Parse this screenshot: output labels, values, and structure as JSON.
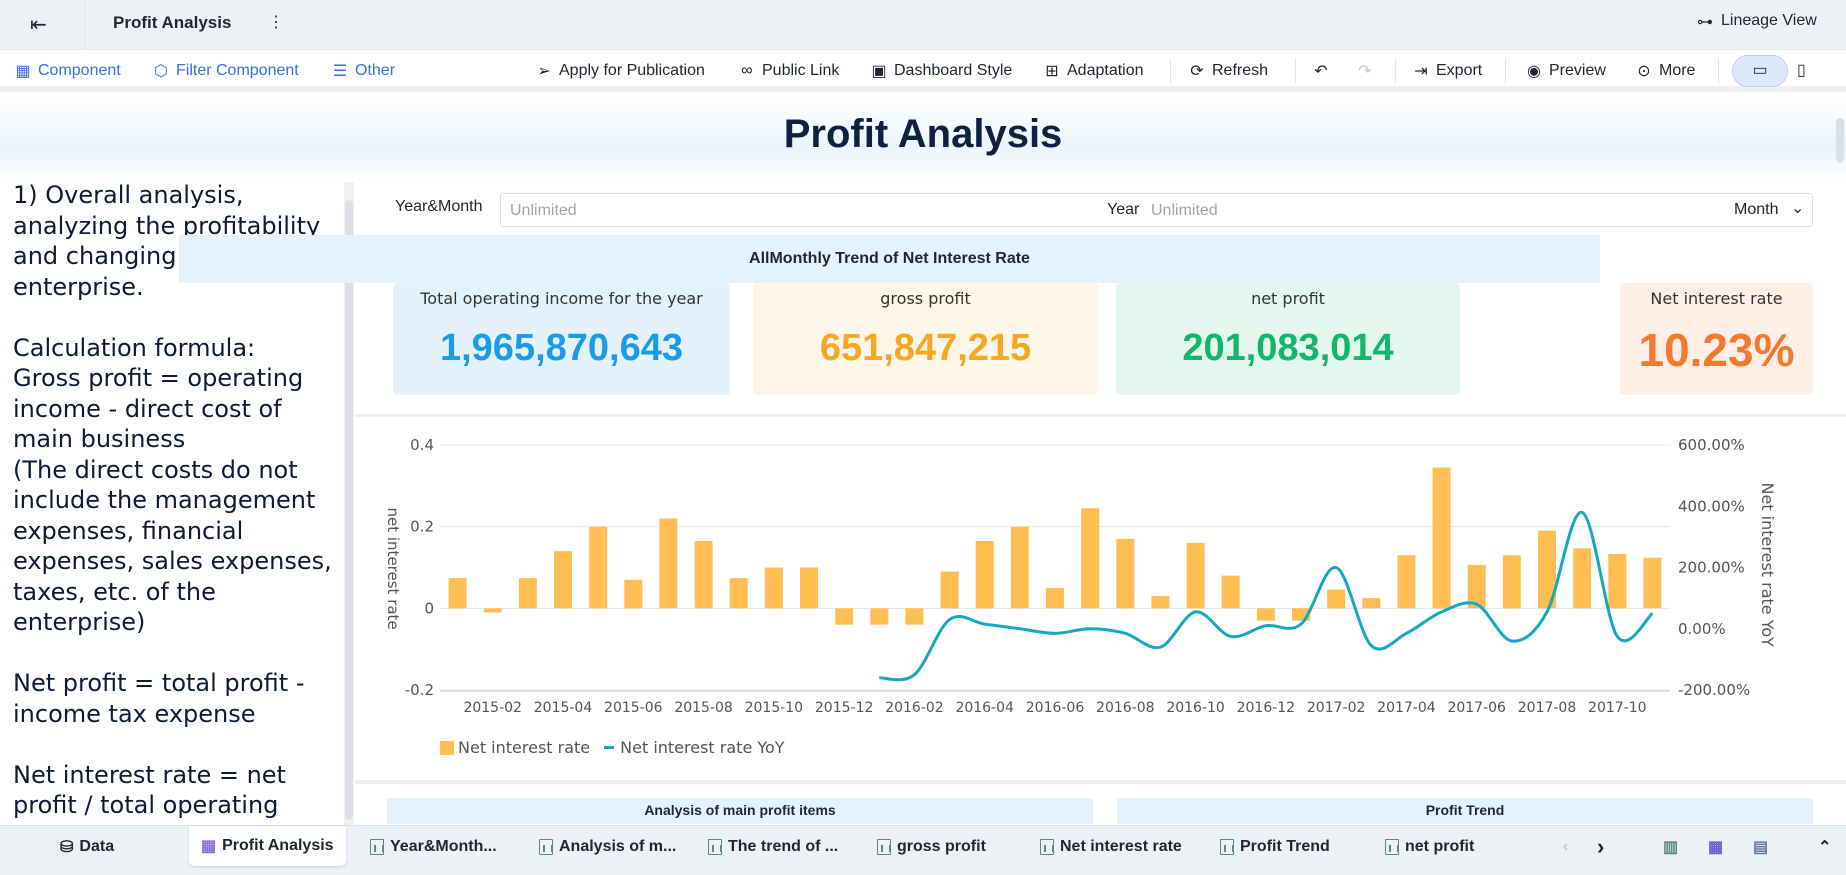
{
  "topbar": {
    "title": "Profit Analysis",
    "lineage_view": "Lineage View"
  },
  "toolbar": {
    "component": "Component",
    "filter_component": "Filter Component",
    "other": "Other",
    "apply_publication": "Apply for Publication",
    "public_link": "Public Link",
    "dashboard_style": "Dashboard Style",
    "adaptation": "Adaptation",
    "refresh": "Refresh",
    "export": "Export",
    "preview": "Preview",
    "more": "More"
  },
  "dashboard": {
    "title": "Profit Analysis"
  },
  "left_text": "1) Overall analysis, analyzing the profitability and changing trends of the enterprise.\n\nCalculation formula:\nGross profit = operating income - direct cost of main business\n(The direct costs do not include the management expenses, financial expenses, sales expenses, taxes, etc. of the enterprise)\n\nNet profit = total profit - income tax expense\n\nNet interest rate = net profit / total operating income",
  "filter": {
    "label": "Year&Month",
    "start_placeholder": "Unlimited",
    "year_label": "Year",
    "year_placeholder": "Unlimited",
    "granularity": "Month"
  },
  "kpis": [
    {
      "title": "Total operating income for the year",
      "value": "1,965,870,643",
      "color": "#1a9be8",
      "bg": "#e3f1fc"
    },
    {
      "title": "gross profit",
      "value": "651,847,215",
      "color": "#f5a623",
      "bg": "#fdf6e6"
    },
    {
      "title": "net profit",
      "value": "201,083,014",
      "color": "#10b66a",
      "bg": "#e3f7ee"
    },
    {
      "title": "Net interest rate",
      "value": "10.23%",
      "color": "#f27a2c",
      "bg": "#fdeee6"
    }
  ],
  "chart_data": {
    "type": "bar+line",
    "title": "AllMonthly Trend of Net Interest Rate",
    "ylabel": "net interest rate",
    "y2label": "Net interest rate YoY",
    "ylim": [
      -0.2,
      0.4
    ],
    "y2lim": [
      -200,
      600
    ],
    "yticks": [
      "0.4",
      "0.2",
      "0",
      "-0.2"
    ],
    "y2ticks": [
      "600.00%",
      "400.00%",
      "200.00%",
      "0.00%",
      "-200.00%"
    ],
    "xtick_labels": [
      "2015-02",
      "2015-04",
      "2015-06",
      "2015-08",
      "2015-10",
      "2015-12",
      "2016-02",
      "2016-04",
      "2016-06",
      "2016-08",
      "2016-10",
      "2016-12",
      "2017-02",
      "2017-04",
      "2017-06",
      "2017-08",
      "2017-10"
    ],
    "categories": [
      "2015-01",
      "2015-02",
      "2015-03",
      "2015-04",
      "2015-05",
      "2015-06",
      "2015-07",
      "2015-08",
      "2015-09",
      "2015-10",
      "2015-11",
      "2015-12",
      "2016-01",
      "2016-02",
      "2016-03",
      "2016-04",
      "2016-05",
      "2016-06",
      "2016-07",
      "2016-08",
      "2016-09",
      "2016-10",
      "2016-11",
      "2016-12",
      "2017-01",
      "2017-02",
      "2017-03",
      "2017-04",
      "2017-05",
      "2017-06",
      "2017-07",
      "2017-08",
      "2017-09",
      "2017-10",
      "2017-11"
    ],
    "series": [
      {
        "name": "Net interest rate",
        "type": "bar",
        "color": "#ffbd52",
        "values": [
          0.074,
          -0.01,
          0.074,
          0.14,
          0.2,
          0.07,
          0.22,
          0.165,
          0.074,
          0.1,
          0.1,
          -0.04,
          -0.04,
          -0.04,
          0.09,
          0.165,
          0.2,
          0.05,
          0.245,
          0.17,
          0.03,
          0.16,
          0.08,
          -0.03,
          -0.03,
          0.046,
          0.025,
          0.13,
          0.345,
          0.106,
          0.13,
          0.19,
          0.147,
          0.133,
          0.124
        ]
      },
      {
        "name": "Net interest rate YoY",
        "type": "line",
        "color": "#13a8c0",
        "values": [
          null,
          null,
          null,
          null,
          null,
          null,
          null,
          null,
          null,
          null,
          null,
          null,
          -160,
          -150,
          30,
          15,
          0,
          -15,
          0,
          -15,
          -60,
          55,
          -25,
          10,
          15,
          200,
          -55,
          -15,
          55,
          80,
          -40,
          55,
          380,
          -25,
          50
        ]
      }
    ],
    "legend": "bottom-left"
  },
  "bottom_panels": [
    "Analysis of main profit items",
    "Profit Trend"
  ],
  "tabs": [
    "Data",
    "Profit Analysis",
    "Year&Month...",
    "Analysis of m...",
    "The trend of ...",
    "gross profit",
    "Net interest rate",
    "Profit Trend",
    "net profit"
  ]
}
